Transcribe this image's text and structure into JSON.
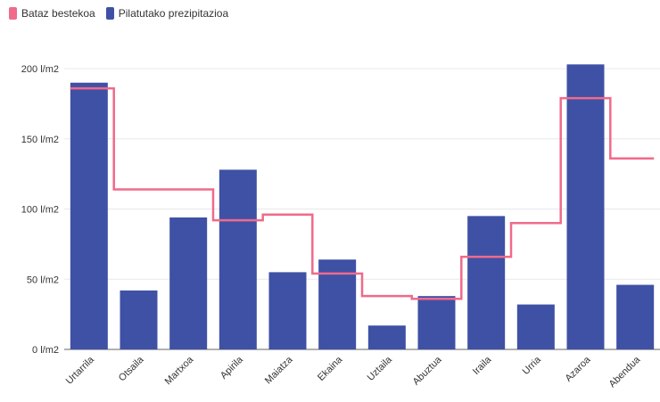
{
  "legend": {
    "line_label": "Bataz bestekoa",
    "bar_label": "Pilatutako prezipitazioa"
  },
  "colors": {
    "bar": "#3f51a5",
    "line": "#f06a8a",
    "grid": "#e8e8e8",
    "axis": "#666666"
  },
  "chart_data": {
    "type": "bar",
    "categories": [
      "Urtarrila",
      "Otsaila",
      "Martxoa",
      "Apirila",
      "Maiatza",
      "Ekaina",
      "Uztaila",
      "Abuztua",
      "Iraila",
      "Urria",
      "Azaroa",
      "Abendua"
    ],
    "series": [
      {
        "name": "Pilatutako prezipitazioa",
        "type": "bar",
        "values": [
          190,
          42,
          94,
          128,
          55,
          64,
          17,
          38,
          95,
          32,
          203,
          46
        ]
      },
      {
        "name": "Bataz bestekoa",
        "type": "step-line",
        "values": [
          186,
          114,
          114,
          92,
          96,
          54,
          38,
          36,
          66,
          90,
          179,
          136
        ]
      }
    ],
    "ylim": [
      0,
      200
    ],
    "yticks": [
      0,
      50,
      100,
      150,
      200
    ],
    "ytick_labels": [
      "0 l/m2",
      "50 l/m2",
      "100 l/m2",
      "150 l/m2",
      "200 l/m2"
    ],
    "grid": true,
    "legend_position": "top-left"
  }
}
